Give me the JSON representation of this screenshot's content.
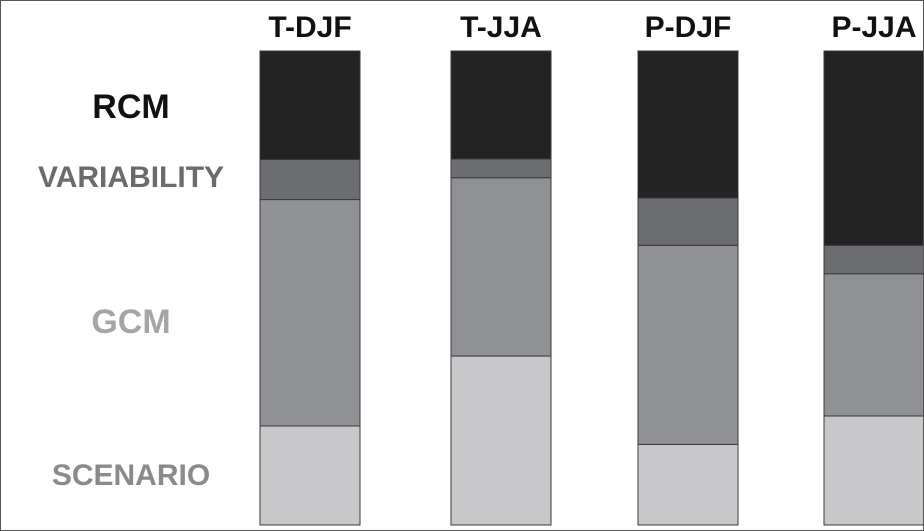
{
  "chart_data": {
    "type": "bar",
    "stacked": true,
    "normalized": true,
    "categories": [
      "T-DJF",
      "T-JJA",
      "P-DJF",
      "P-JJA"
    ],
    "series": [
      {
        "name": "SCENARIO",
        "color": "#c8c8ca",
        "values": [
          0.21,
          0.36,
          0.17,
          0.23
        ]
      },
      {
        "name": "GCM",
        "color": "#909194",
        "values": [
          0.48,
          0.38,
          0.42,
          0.3
        ]
      },
      {
        "name": "VARIABILITY",
        "color": "#6c6d70",
        "values": [
          0.085,
          0.04,
          0.1,
          0.06
        ]
      },
      {
        "name": "RCM",
        "color": "#232323",
        "values": [
          0.23,
          0.23,
          0.31,
          0.41
        ]
      }
    ],
    "series_labels_order_top_to_bottom": [
      "RCM",
      "VARIABILITY",
      "GCM",
      "SCENARIO"
    ],
    "legend": "left",
    "grid": false,
    "ylim": [
      0,
      1
    ]
  }
}
